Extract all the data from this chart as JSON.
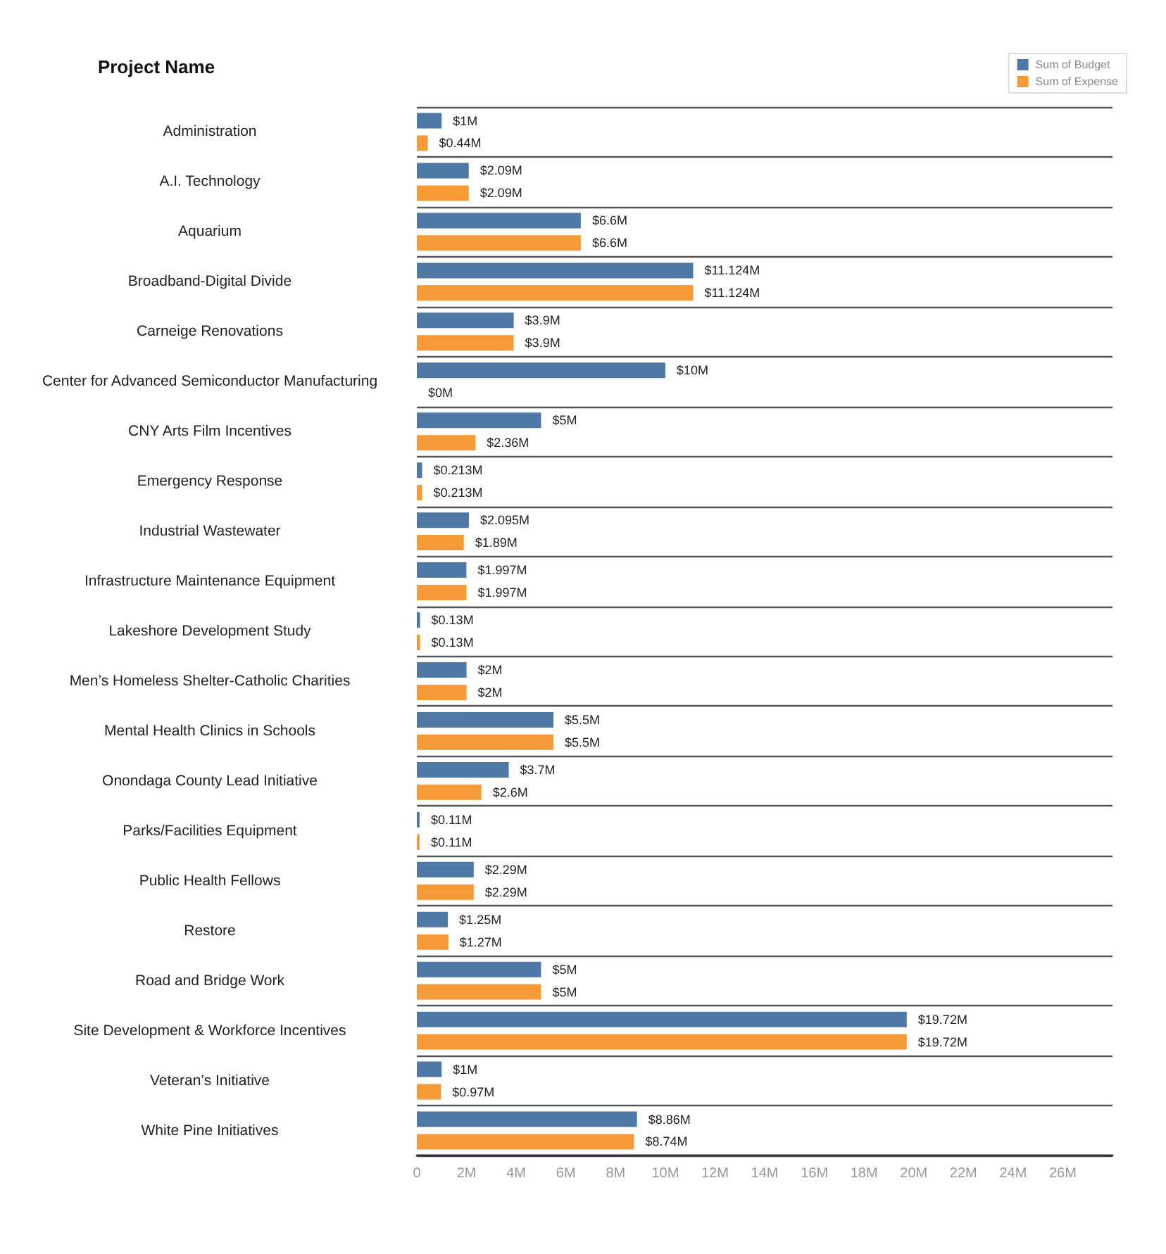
{
  "chart_data": {
    "type": "bar",
    "orientation": "horizontal",
    "ylabel": "Project Name",
    "legend": "top right",
    "grid": "y",
    "categories": [
      "Administration",
      "A.I. Technology",
      "Aquarium",
      "Broadband-Digital Divide",
      "Carneige Renovations",
      "Center for Advanced Semiconductor Manufacturing",
      "CNY Arts Film Incentives",
      "Emergency Response",
      "Industrial Wastewater",
      "Infrastructure Maintenance Equipment",
      "Lakeshore Development Study",
      "Men’s Homeless Shelter-Catholic Charities",
      "Mental Health Clinics in Schools",
      "Onondaga County Lead Initiative",
      "Parks/Facilities Equipment",
      "Public Health Fellows",
      "Restore",
      "Road and Bridge Work",
      "Site Development & Workforce Incentives",
      "Veteran’s Initiative",
      "White Pine Initiatives"
    ],
    "series": [
      {
        "name": "Sum of Budget",
        "color": "#4e79a7",
        "values": [
          1,
          2.09,
          6.6,
          11.124,
          3.9,
          10,
          5,
          0.213,
          2.095,
          1.997,
          0.13,
          2,
          5.5,
          3.7,
          0.11,
          2.29,
          1.25,
          5,
          19.72,
          1,
          8.86
        ],
        "value_labels": [
          "$1M",
          "$2.09M",
          "$6.6M",
          "$11.124M",
          "$3.9M",
          "$10M",
          "$5M",
          "$0.213M",
          "$2.095M",
          "$1.997M",
          "$0.13M",
          "$2M",
          "$5.5M",
          "$3.7M",
          "$0.11M",
          "$2.29M",
          "$1.25M",
          "$5M",
          "$19.72M",
          "$1M",
          "$8.86M"
        ]
      },
      {
        "name": "Sum of Expense",
        "color": "#f59a36",
        "values": [
          0.44,
          2.09,
          6.6,
          11.124,
          3.9,
          0,
          2.36,
          0.213,
          1.89,
          1.997,
          0.13,
          2,
          5.5,
          2.6,
          0.11,
          2.29,
          1.27,
          5,
          19.72,
          0.97,
          8.74
        ],
        "value_labels": [
          "$0.44M",
          "$2.09M",
          "$6.6M",
          "$11.124M",
          "$3.9M",
          "$0M",
          "$2.36M",
          "$0.213M",
          "$1.89M",
          "$1.997M",
          "$0.13M",
          "$2M",
          "$5.5M",
          "$2.6M",
          "$0.11M",
          "$2.29M",
          "$1.27M",
          "$5M",
          "$19.72M",
          "$0.97M",
          "$8.74M"
        ]
      }
    ],
    "xlim": [
      0,
      28
    ],
    "xticks": [
      0,
      {
        "value": 2,
        "label": "2M"
      },
      {
        "value": 4,
        "label": "4M"
      },
      {
        "value": 6,
        "label": "6M"
      },
      {
        "value": 8,
        "label": "8M"
      },
      {
        "value": 10,
        "label": "10M"
      },
      {
        "value": 12,
        "label": "12M"
      },
      {
        "value": 14,
        "label": "14M"
      },
      {
        "value": 16,
        "label": "16M"
      },
      {
        "value": 18,
        "label": "18M"
      },
      {
        "value": 20,
        "label": "20M"
      },
      {
        "value": 22,
        "label": "22M"
      },
      {
        "value": 24,
        "label": "24M"
      },
      {
        "value": 26,
        "label": "26M"
      }
    ]
  }
}
